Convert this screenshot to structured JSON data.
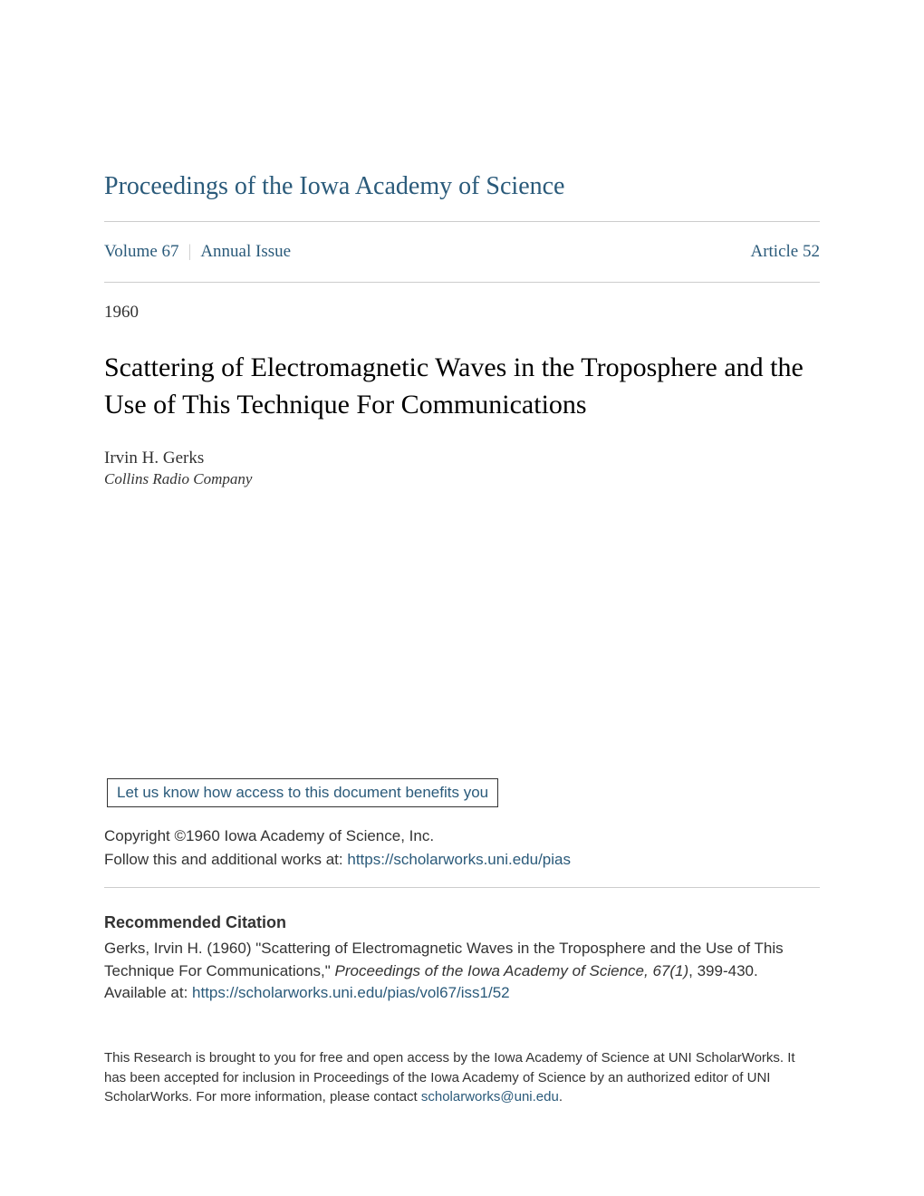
{
  "journal_title": "Proceedings of the Iowa Academy of Science",
  "volume_label": "Volume 67",
  "issue_label": "Annual Issue",
  "article_label": "Article 52",
  "year": "1960",
  "article_title": "Scattering of Electromagnetic Waves in the Troposphere and the Use of This Technique For Communications",
  "author": {
    "name": "Irvin H. Gerks",
    "affiliation": "Collins Radio Company"
  },
  "benefits_text": "Let us know how access to this document benefits you",
  "copyright": "Copyright ©1960 Iowa Academy of Science, Inc.",
  "follow_prefix": "Follow this and additional works at: ",
  "follow_url": "https://scholarworks.uni.edu/pias",
  "citation_heading": "Recommended Citation",
  "citation_part1": "Gerks, Irvin H. (1960) \"Scattering of Electromagnetic Waves in the Troposphere and the Use of This Technique For Communications,\" ",
  "citation_italic": "Proceedings of the Iowa Academy of Science, 67(1)",
  "citation_part2": ", 399-430.",
  "available_prefix": "Available at: ",
  "available_url": "https://scholarworks.uni.edu/pias/vol67/iss1/52",
  "footer_part1": "This Research is brought to you for free and open access by the Iowa Academy of Science at UNI ScholarWorks. It has been accepted for inclusion in Proceedings of the Iowa Academy of Science by an authorized editor of UNI ScholarWorks. For more information, please contact ",
  "footer_email": "scholarworks@uni.edu",
  "footer_part2": ".",
  "colors": {
    "link": "#2a5a7a",
    "text": "#333333",
    "divider": "#cccccc",
    "background": "#ffffff"
  }
}
